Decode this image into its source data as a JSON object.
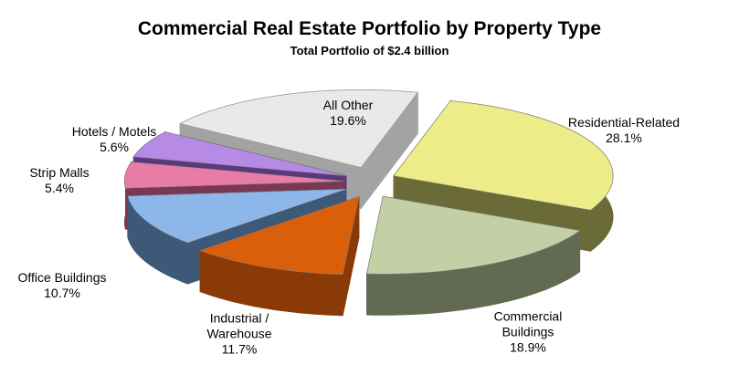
{
  "chart_data": {
    "type": "pie3d",
    "title": "Commercial Real Estate Portfolio by Property Type",
    "subtitle": "Total Portfolio of $2.4 billion",
    "categories": [
      "Residential-Related",
      "Commercial Buildings",
      "Industrial / Warehouse",
      "Office Buildings",
      "Strip Malls",
      "Hotels / Motels",
      "All Other"
    ],
    "values": [
      28.1,
      18.9,
      11.7,
      10.7,
      5.4,
      5.6,
      19.6
    ],
    "value_labels": [
      "28.1%",
      "18.9%",
      "11.7%",
      "10.7%",
      "5.4%",
      "5.6%",
      "19.6%"
    ],
    "colors": [
      "#ecec88",
      "#c3d0a6",
      "#d95f0b",
      "#8db7e8",
      "#e87ca6",
      "#b78ae6",
      "#e9e9e9"
    ],
    "side_colors": [
      "#6b6b38",
      "#626b52",
      "#8a3a06",
      "#3e5878",
      "#7a3856",
      "#5a3a7c",
      "#a3a3a3"
    ]
  }
}
